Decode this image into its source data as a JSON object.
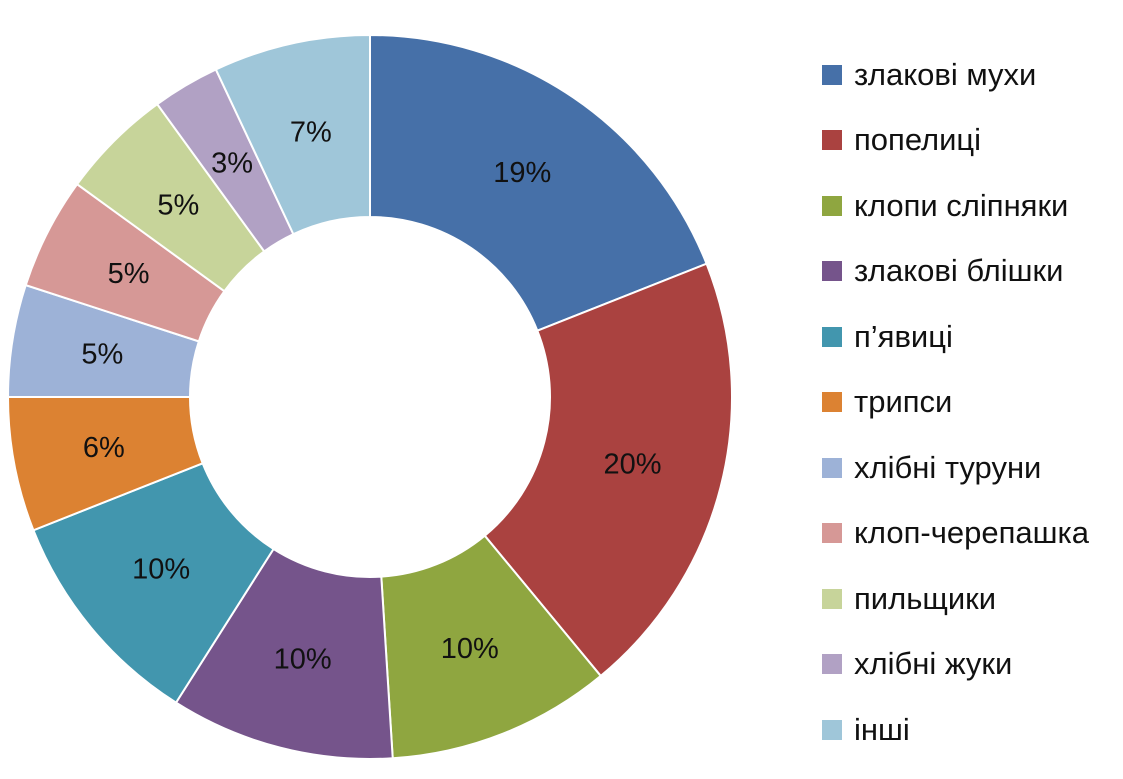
{
  "chart_data": {
    "type": "pie",
    "donut": true,
    "legend_position": "right",
    "categories": [
      "злакові мухи",
      "попелиці",
      "клопи сліпняки",
      "злакові блішки",
      "п’явиці",
      "трипси",
      "хлібні туруни",
      "клоп-черепашка",
      "пильщики",
      "хлібні жуки",
      "інші"
    ],
    "values": [
      19,
      20,
      10,
      10,
      10,
      6,
      5,
      5,
      5,
      3,
      7
    ],
    "data_labels": [
      "19%",
      "20%",
      "10%",
      "10%",
      "10%",
      "6%",
      "5%",
      "5%",
      "5%",
      "3%",
      "7%"
    ],
    "colors": [
      "#4670A8",
      "#AA4240",
      "#8FA640",
      "#75548B",
      "#4296AE",
      "#DC8232",
      "#9DB2D7",
      "#D69896",
      "#C7D49A",
      "#B1A1C4",
      "#9FC6D9"
    ]
  }
}
